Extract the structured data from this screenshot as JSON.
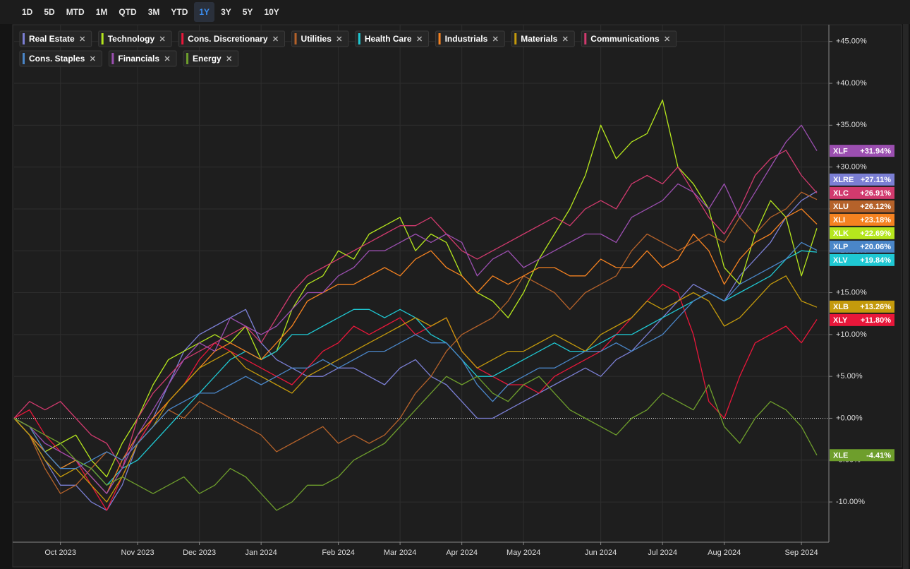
{
  "toolbar": {
    "ranges": [
      "1D",
      "5D",
      "MTD",
      "1M",
      "QTD",
      "3M",
      "YTD",
      "1Y",
      "3Y",
      "5Y",
      "10Y"
    ],
    "active": "1Y"
  },
  "chart_data": {
    "type": "line",
    "categories": [
      null,
      null,
      null,
      "Oct 2023",
      null,
      null,
      null,
      null,
      "Nov 2023",
      null,
      null,
      null,
      "Dec 2023",
      null,
      null,
      null,
      "Jan 2024",
      null,
      null,
      null,
      null,
      "Feb 2024",
      null,
      null,
      null,
      "Mar 2024",
      null,
      null,
      null,
      "Apr 2024",
      null,
      null,
      null,
      "May 2024",
      null,
      null,
      null,
      null,
      "Jun 2024",
      null,
      null,
      null,
      "Jul 2024",
      null,
      null,
      null,
      "Aug 2024",
      null,
      null,
      null,
      null,
      "Sep 2024",
      null
    ],
    "ylim": [
      -14.8,
      47
    ],
    "yticks": [
      {
        "value": -10,
        "label": "-10.00%"
      },
      {
        "value": -5,
        "label": "-5.00%"
      },
      {
        "value": 0,
        "label": "+0.00%"
      },
      {
        "value": 5,
        "label": "+5.00%"
      },
      {
        "value": 10,
        "label": "+10.00%"
      },
      {
        "value": 15,
        "label": "+15.00%"
      },
      {
        "value": 20,
        "label": "+20.00%"
      },
      {
        "value": 25,
        "label": "+25.00%"
      },
      {
        "value": 30,
        "label": "+30.00%"
      },
      {
        "value": 35,
        "label": "+35.00%"
      },
      {
        "value": 40,
        "label": "+40.00%"
      },
      {
        "value": 45,
        "label": "+45.00%"
      }
    ],
    "grid": true,
    "series": [
      {
        "name": "Real Estate",
        "ticker": "XLRE",
        "end_label": "+27.11%",
        "color": "#7b7fd4",
        "values": [
          0,
          -2,
          -5,
          -8,
          -8,
          -10,
          -11,
          -8,
          -3,
          0,
          4,
          8,
          10,
          11,
          12,
          13,
          9,
          7,
          6,
          5,
          5,
          6,
          6,
          5,
          4,
          6,
          7,
          5,
          4,
          2,
          0,
          0,
          1,
          2,
          3,
          4,
          5,
          6,
          5,
          7,
          8,
          10,
          12,
          14,
          16,
          15,
          14,
          17,
          19,
          21,
          24,
          26,
          27.11
        ]
      },
      {
        "name": "Technology",
        "ticker": "XLK",
        "end_label": "+22.69%",
        "color": "#b5e61d",
        "values": [
          0,
          -1,
          -4,
          -3,
          -2,
          -5,
          -7,
          -3,
          0,
          4,
          7,
          8,
          9,
          10,
          9,
          11,
          7,
          8,
          13,
          16,
          17,
          20,
          19,
          22,
          23,
          24,
          20,
          22,
          21,
          17,
          15,
          14,
          12,
          15,
          19,
          22,
          25,
          29,
          35,
          31,
          33,
          34,
          38,
          30,
          28,
          25,
          18,
          16,
          22,
          26,
          24,
          17,
          22.69
        ]
      },
      {
        "name": "Cons. Discretionary",
        "ticker": "XLY",
        "end_label": "+11.80%",
        "color": "#e8173a",
        "values": [
          0,
          1,
          -2,
          -4,
          -5,
          -8,
          -11,
          -7,
          -3,
          0,
          2,
          4,
          7,
          9,
          8,
          7,
          6,
          5,
          4,
          6,
          8,
          9,
          11,
          10,
          11,
          12,
          10,
          11,
          12,
          8,
          6,
          5,
          4,
          4,
          3,
          5,
          6,
          7,
          8,
          10,
          12,
          14,
          16,
          15,
          10,
          2,
          0,
          5,
          9,
          10,
          11,
          9,
          11.8
        ]
      },
      {
        "name": "Utilities",
        "ticker": "XLU",
        "end_label": "+26.12%",
        "color": "#b5622a",
        "values": [
          0,
          -2,
          -6,
          -9,
          -8,
          -6,
          -4,
          -5,
          -3,
          -1,
          1,
          0,
          2,
          1,
          0,
          -1,
          -2,
          -4,
          -3,
          -2,
          -1,
          -3,
          -2,
          -3,
          -2,
          0,
          3,
          5,
          8,
          10,
          11,
          12,
          14,
          17,
          16,
          15,
          13,
          15,
          16,
          17,
          20,
          22,
          21,
          20,
          21,
          22,
          21,
          24,
          22,
          24,
          25,
          27,
          26.12
        ]
      },
      {
        "name": "Health Care",
        "ticker": "XLV",
        "end_label": "+19.84%",
        "color": "#1fc8d3",
        "values": [
          0,
          -2,
          -4,
          -6,
          -5,
          -6,
          -8,
          -6,
          -5,
          -3,
          -1,
          1,
          3,
          5,
          7,
          8,
          7,
          8,
          10,
          10,
          11,
          12,
          13,
          13,
          12,
          13,
          12,
          10,
          9,
          7,
          5,
          5,
          6,
          7,
          8,
          9,
          8,
          8,
          9,
          10,
          10,
          11,
          12,
          13,
          14,
          15,
          14,
          15,
          16,
          17,
          19,
          20,
          19.84
        ]
      },
      {
        "name": "Industrials",
        "ticker": "XLI",
        "end_label": "+23.18%",
        "color": "#f58220",
        "values": [
          0,
          -2,
          -4,
          -6,
          -5,
          -7,
          -9,
          -5,
          -2,
          0,
          2,
          4,
          6,
          8,
          9,
          8,
          7,
          9,
          11,
          14,
          15,
          16,
          16,
          17,
          18,
          17,
          19,
          20,
          18,
          17,
          15,
          17,
          16,
          17,
          18,
          18,
          17,
          17,
          19,
          18,
          18,
          20,
          18,
          19,
          22,
          20,
          16,
          19,
          21,
          22,
          24,
          25,
          23.18
        ]
      },
      {
        "name": "Materials",
        "ticker": "XLB",
        "end_label": "+13.26%",
        "color": "#c49a0c",
        "values": [
          0,
          -2,
          -5,
          -7,
          -6,
          -8,
          -10,
          -7,
          -3,
          -1,
          2,
          4,
          6,
          7,
          8,
          6,
          5,
          4,
          3,
          5,
          6,
          7,
          8,
          9,
          10,
          11,
          12,
          11,
          12,
          8,
          6,
          7,
          8,
          8,
          9,
          10,
          9,
          8,
          10,
          11,
          12,
          14,
          13,
          14,
          15,
          14,
          11,
          12,
          14,
          16,
          17,
          14,
          13.26
        ]
      },
      {
        "name": "Communications",
        "ticker": "XLC",
        "end_label": "+26.91%",
        "color": "#d13a6e",
        "values": [
          0,
          2,
          1,
          2,
          0,
          -2,
          -3,
          -6,
          0,
          3,
          5,
          7,
          8,
          9,
          10,
          11,
          9,
          12,
          15,
          17,
          18,
          19,
          20,
          21,
          22,
          23,
          23,
          24,
          22,
          20,
          19,
          20,
          21,
          22,
          23,
          24,
          23,
          25,
          26,
          25,
          28,
          29,
          28,
          30,
          27,
          24,
          22,
          25,
          29,
          31,
          32,
          29,
          26.91
        ]
      },
      {
        "name": "Cons. Staples",
        "ticker": "XLP",
        "end_label": "+20.06%",
        "color": "#4a86c8",
        "values": [
          0,
          -1,
          -4,
          -6,
          -6,
          -5,
          -4,
          -5,
          -3,
          -1,
          1,
          2,
          3,
          3,
          4,
          5,
          4,
          5,
          6,
          6,
          7,
          6,
          7,
          8,
          8,
          9,
          10,
          9,
          9,
          7,
          4,
          2,
          4,
          5,
          6,
          6,
          7,
          8,
          8,
          9,
          8,
          9,
          10,
          12,
          14,
          15,
          14,
          16,
          17,
          18,
          19,
          21,
          20.06
        ]
      },
      {
        "name": "Financials",
        "ticker": "XLF",
        "end_label": "+31.94%",
        "color": "#9b4fb0",
        "values": [
          0,
          -1,
          -3,
          -4,
          -5,
          -7,
          -9,
          -6,
          -2,
          1,
          4,
          7,
          9,
          8,
          12,
          11,
          10,
          11,
          13,
          15,
          15,
          17,
          18,
          20,
          20,
          21,
          22,
          21,
          22,
          21,
          17,
          19,
          20,
          18,
          19,
          20,
          21,
          22,
          22,
          21,
          24,
          25,
          26,
          28,
          27,
          25,
          28,
          24,
          27,
          30,
          33,
          35,
          31.94
        ]
      },
      {
        "name": "Energy",
        "ticker": "XLE",
        "end_label": "-4.41%",
        "color": "#6e9e2c",
        "values": [
          0,
          -1,
          -2,
          -3,
          -5,
          -6,
          -8,
          -7,
          -8,
          -9,
          -8,
          -7,
          -9,
          -8,
          -6,
          -7,
          -9,
          -11,
          -10,
          -8,
          -8,
          -7,
          -5,
          -4,
          -3,
          -1,
          1,
          3,
          5,
          4,
          5,
          3,
          2,
          4,
          5,
          3,
          1,
          0,
          -1,
          -2,
          0,
          1,
          3,
          2,
          1,
          4,
          -1,
          -3,
          0,
          2,
          1,
          -1,
          -4.41
        ]
      }
    ]
  }
}
